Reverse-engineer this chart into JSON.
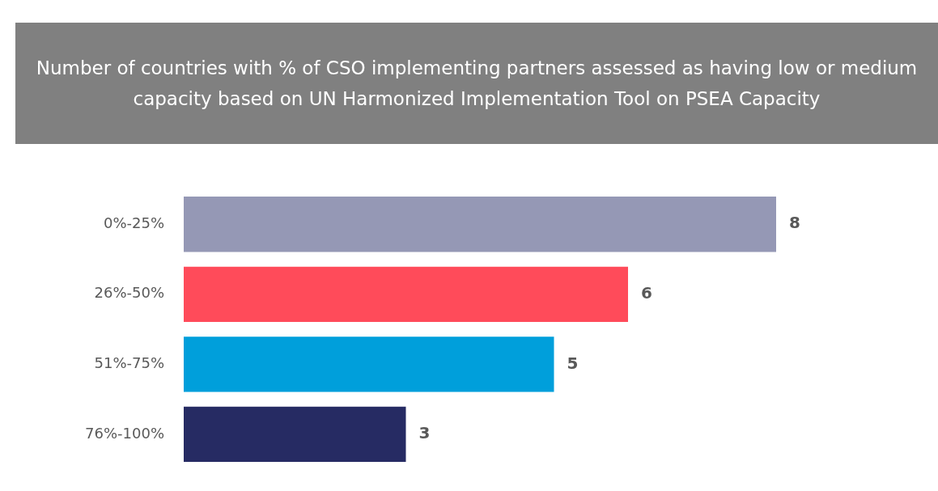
{
  "chart_data": {
    "type": "bar",
    "orientation": "horizontal",
    "title": "Number of countries with % of CSO implementing partners assessed as having low or medium capacity based on UN Harmonized Implementation Tool on PSEA Capacity",
    "categories": [
      "0%-25%",
      "26%-50%",
      "51%-75%",
      "76%-100%"
    ],
    "values": [
      8,
      6,
      5,
      3
    ],
    "colors": [
      "#9598b5",
      "#ff4b5a",
      "#009fdb",
      "#262b63"
    ],
    "data_labels": true,
    "tick_labels": "y"
  }
}
